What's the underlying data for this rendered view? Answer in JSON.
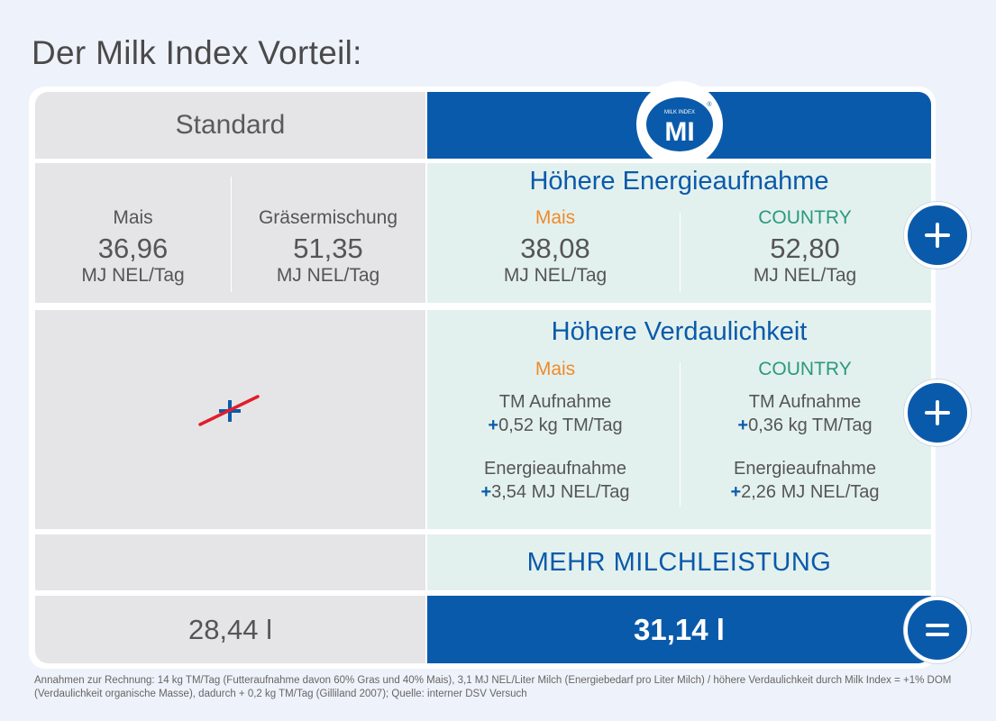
{
  "title": "Der Milk Index Vorteil:",
  "header": {
    "standard_label": "Standard",
    "logo_small_text": "MILK INDEX",
    "logo_text": "MI",
    "logo_mark": "®"
  },
  "energy": {
    "section_title": "Höhere Energieaufnahme",
    "standard": [
      {
        "label": "Mais",
        "value": "36,96",
        "unit": "MJ NEL/Tag"
      },
      {
        "label": "Gräsermischung",
        "value": "51,35",
        "unit": "MJ NEL/Tag"
      }
    ],
    "milk_index": [
      {
        "label": "Mais",
        "value": "38,08",
        "unit": "MJ NEL/Tag"
      },
      {
        "label": "COUNTRY",
        "value": "52,80",
        "unit": "MJ NEL/Tag"
      }
    ]
  },
  "digestibility": {
    "section_title": "Höhere Verdaulichkeit",
    "columns": [
      {
        "label": "Mais",
        "tm_label": "TM Aufnahme",
        "tm_sign": "+",
        "tm_value": "0,52 kg TM/Tag",
        "energy_label": "Energieaufnahme",
        "energy_sign": "+",
        "energy_value": "3,54 MJ NEL/Tag"
      },
      {
        "label": "COUNTRY",
        "tm_label": "TM Aufnahme",
        "tm_sign": "+",
        "tm_value": "0,36 kg TM/Tag",
        "energy_label": "Energieaufnahme",
        "energy_sign": "+",
        "energy_value": "2,26 MJ NEL/Tag"
      }
    ]
  },
  "milk_row": {
    "label": "MEHR MILCHLEISTUNG"
  },
  "result": {
    "standard": "28,44 l",
    "milk_index": "31,14 l"
  },
  "footnote": "Annahmen zur Rechnung: 14 kg TM/Tag (Futteraufnahme davon 60% Gras und 40% Mais), 3,1 MJ NEL/Liter Milch (Energiebedarf pro Liter Milch) / höhere Verdaulichkeit durch Milk Index = +1% DOM (Verdaulichkeit organische Masse), dadurch + 0,2 kg TM/Tag (Gilliland 2007); Quelle: interner DSV Versuch",
  "colors": {
    "brand_blue": "#0a5aab",
    "mais_orange": "#ef8a2a",
    "country_green": "#2a9a7a",
    "grey_cell": "#e5e5e7",
    "mint_cell": "#e3f1ee"
  },
  "icons": [
    "plus-icon",
    "plus-icon",
    "equals-icon",
    "crossed-out-plus-icon",
    "milk-index-logo"
  ]
}
